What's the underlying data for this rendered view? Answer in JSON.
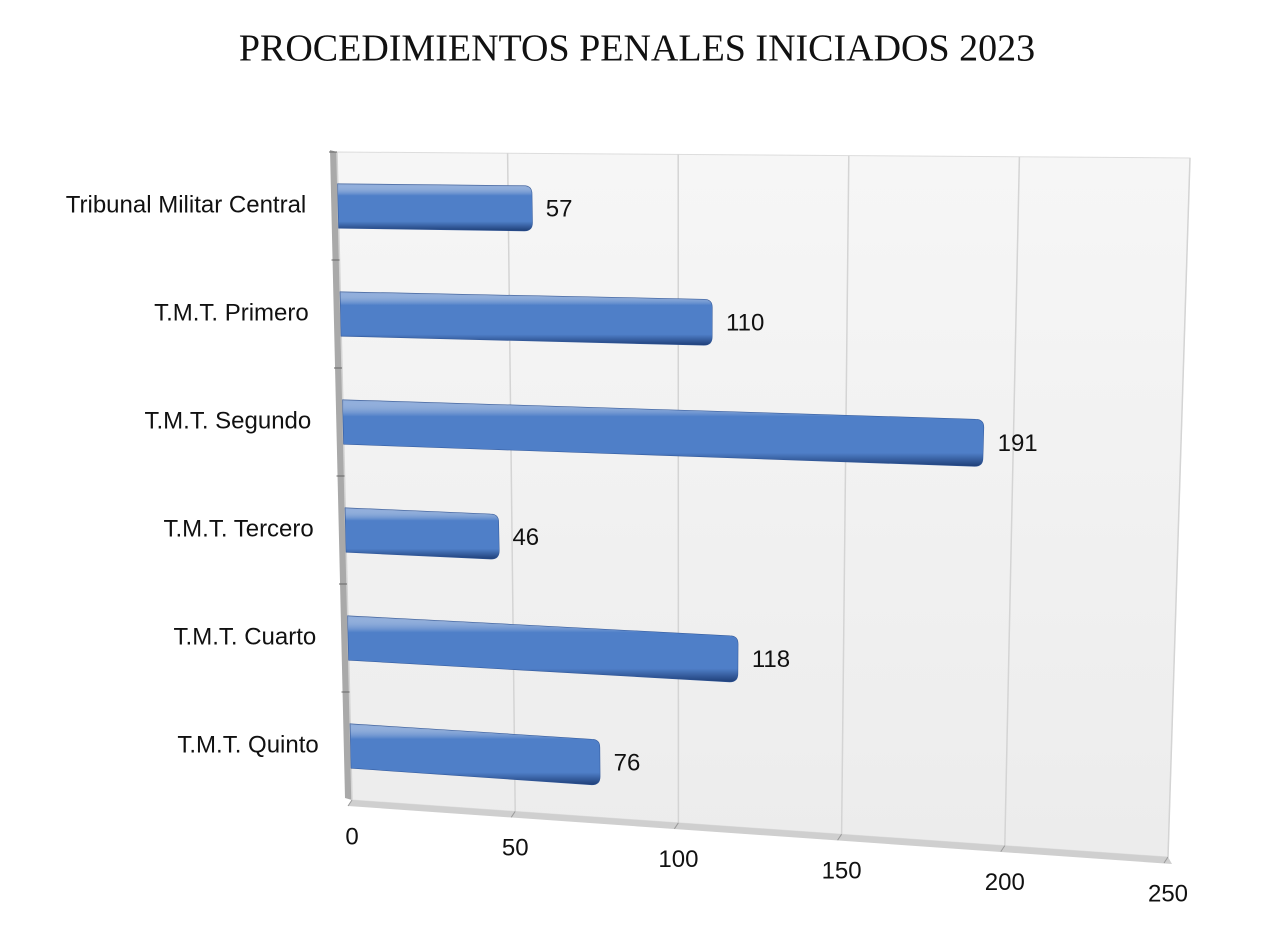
{
  "chart_data": {
    "type": "bar",
    "orientation": "horizontal",
    "title": "PROCEDIMIENTOS PENALES INICIADOS 2023",
    "categories": [
      "Tribunal Militar Central",
      "T.M.T. Primero",
      "T.M.T. Segundo",
      "T.M.T. Tercero",
      "T.M.T. Cuarto",
      "T.M.T. Quinto"
    ],
    "values": [
      57,
      110,
      191,
      46,
      118,
      76
    ],
    "color": "#4f7fc8",
    "xlim": [
      0,
      250
    ],
    "xticks": [
      0,
      50,
      100,
      150,
      200,
      250
    ],
    "grid": true
  }
}
